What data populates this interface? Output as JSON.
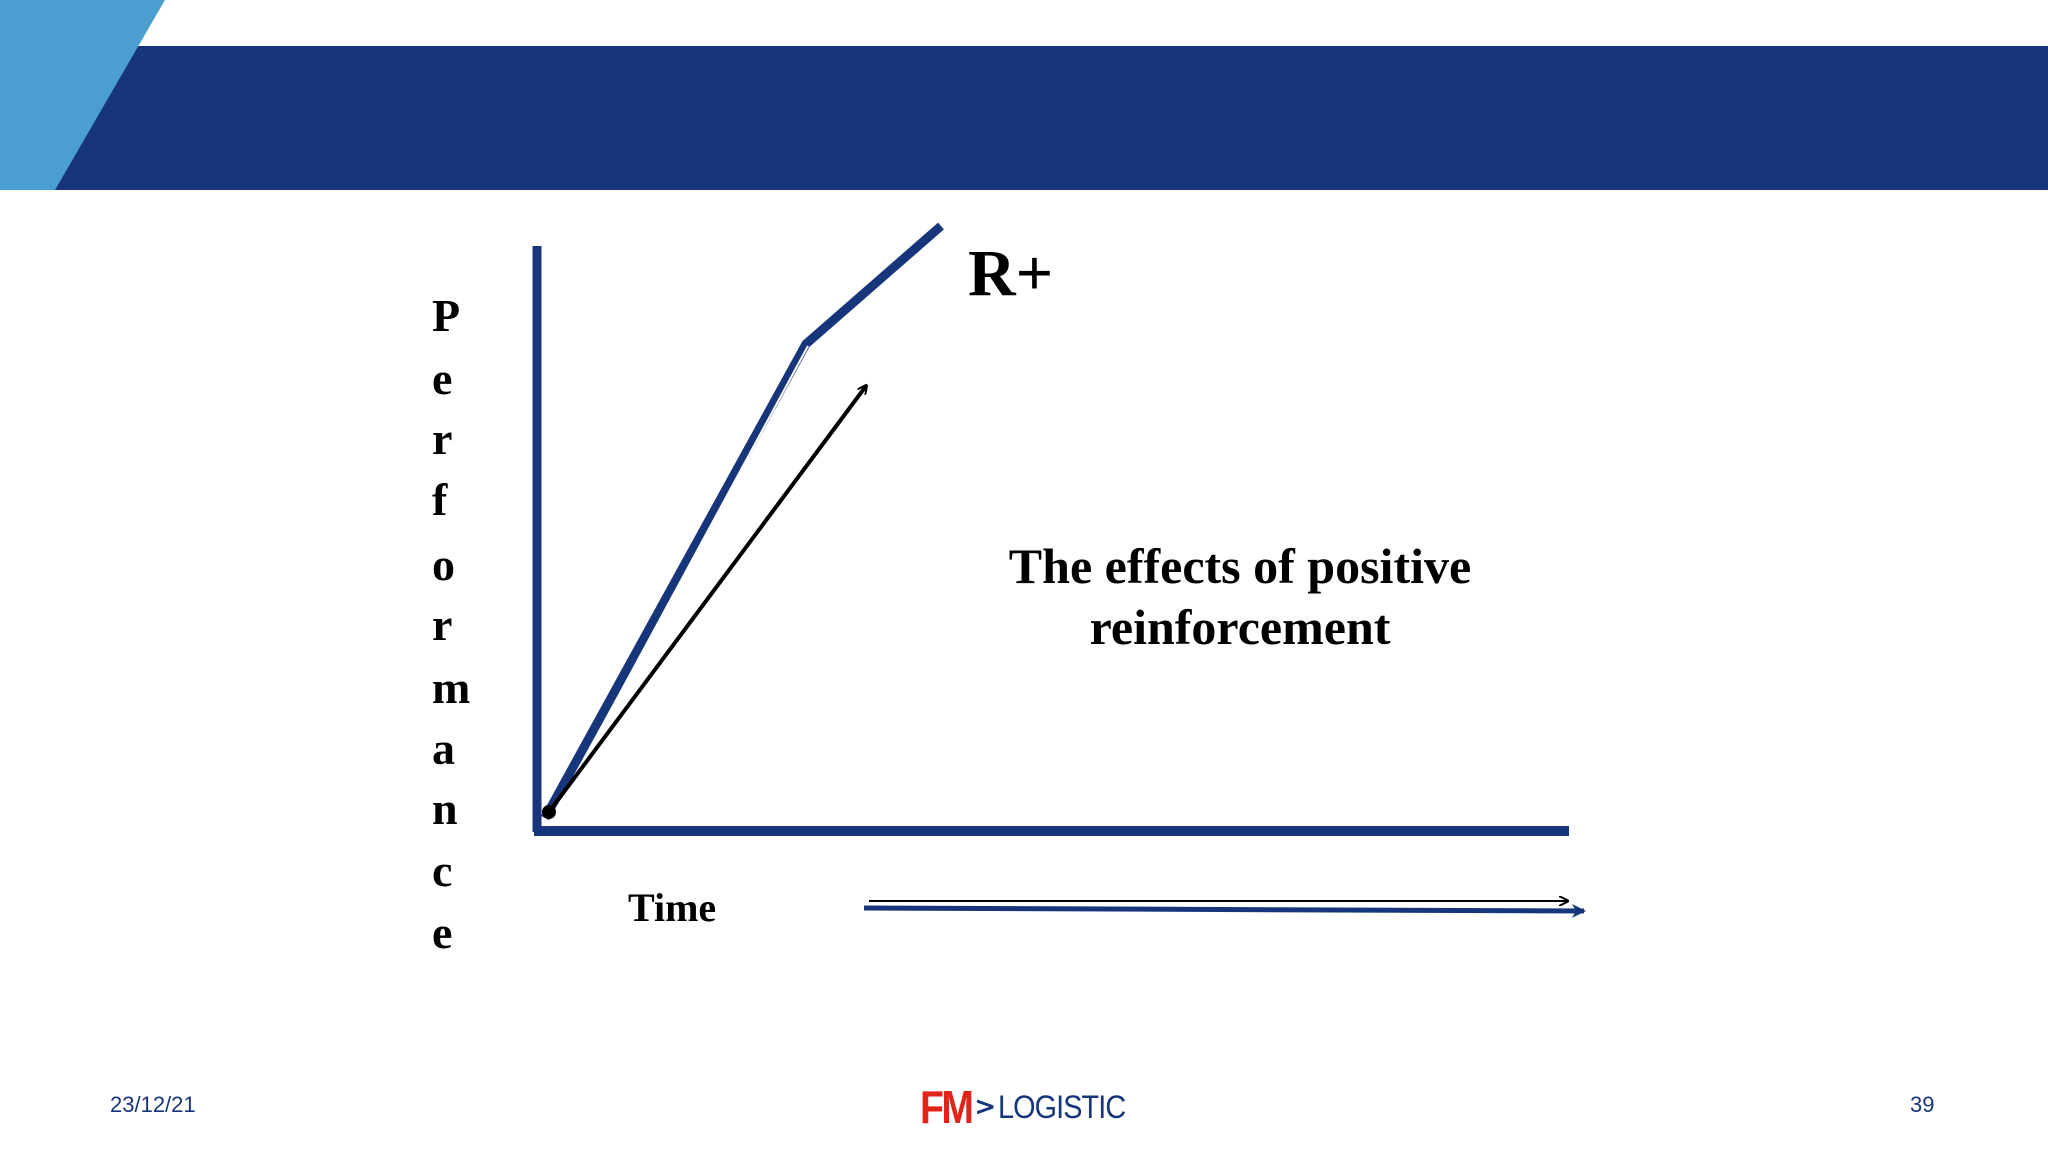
{
  "slide": {
    "y_axis_label_letters": [
      "P",
      "e",
      "r",
      "f",
      "o",
      "r",
      "m",
      "a",
      "n",
      "c",
      "e"
    ],
    "x_axis_label": "Time",
    "curve_label": "R+",
    "caption_line_1": "The effects of positive",
    "caption_line_2": "reinforcement"
  },
  "footer": {
    "date": "23/12/21",
    "page_number": "39",
    "logo_fm": "FM",
    "logo_arrow": ">",
    "logo_text": "LOGISTIC"
  },
  "colors": {
    "brand_navy": "#16357a",
    "accent_light_blue": "#4a9fd0",
    "logo_red": "#e2231a",
    "text": "#000000"
  }
}
